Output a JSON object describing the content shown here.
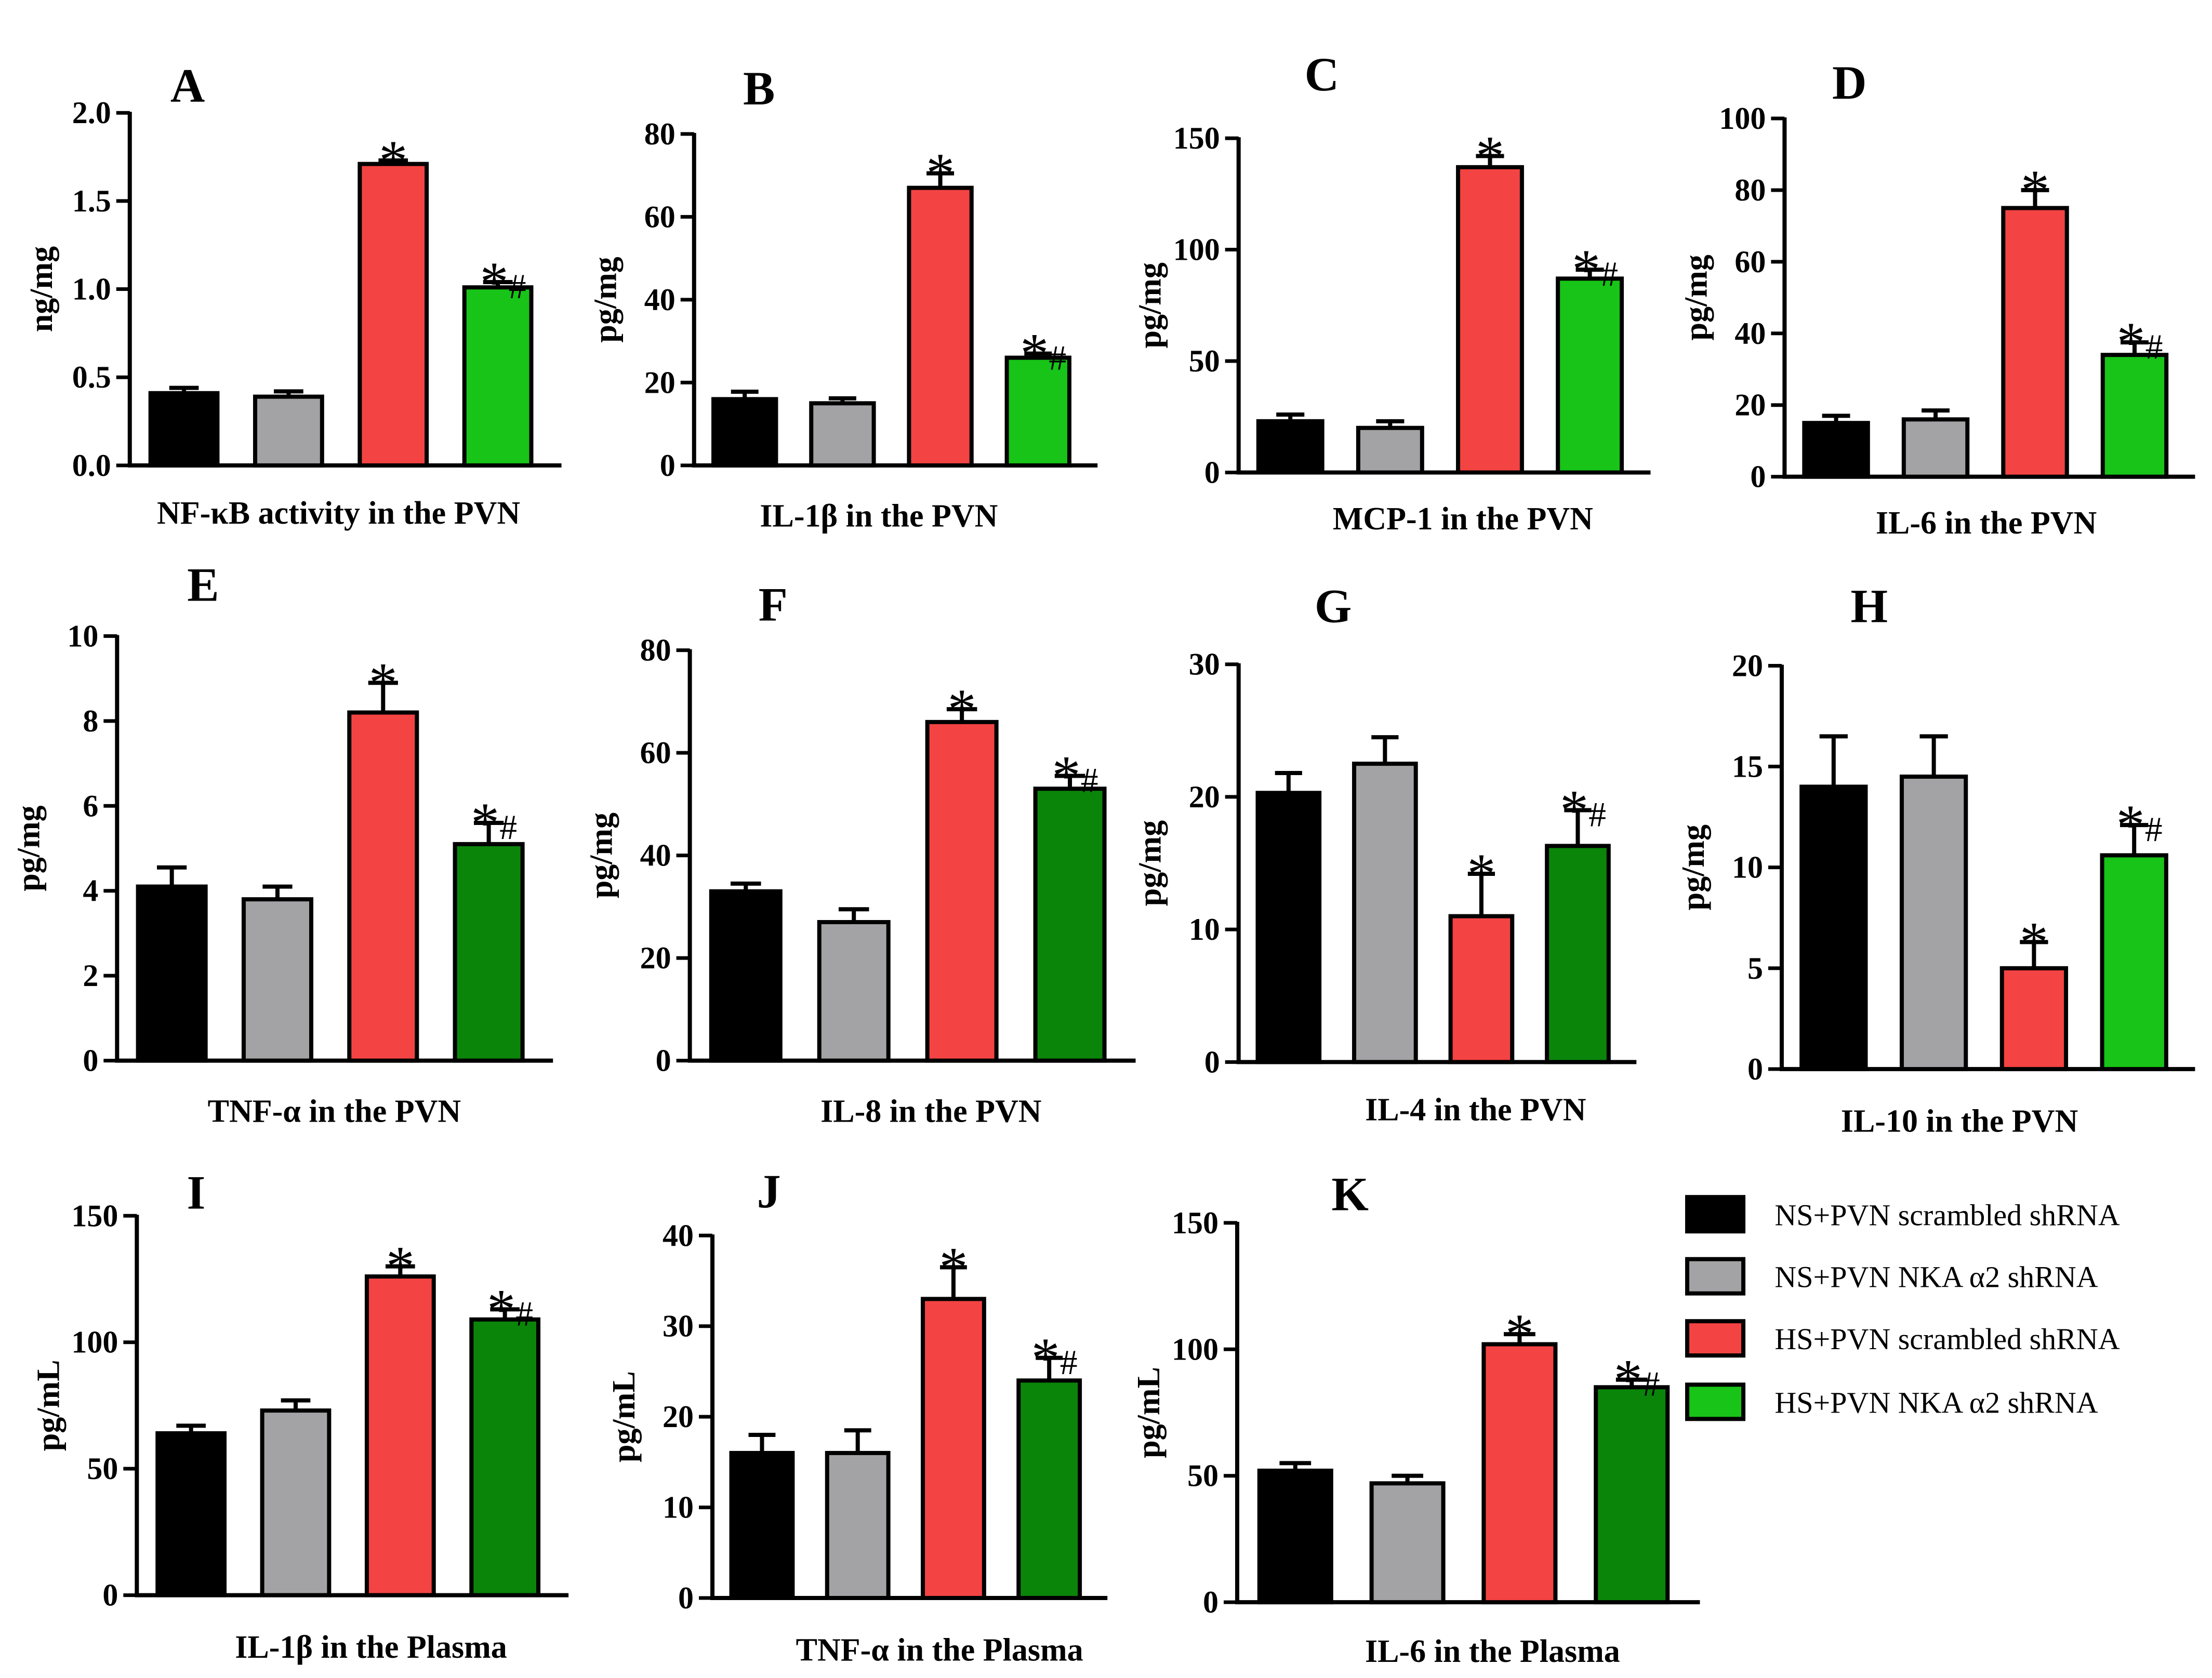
{
  "colors": {
    "NS_scrambled": "#000000",
    "NS_nka": "#a3a3a6",
    "HS_scrambled": "#f44343",
    "HS_nka_light": "#17c417",
    "HS_nka_dark": "#0a850a"
  },
  "legend": [
    {
      "label": "NS+PVN scrambled shRNA",
      "color": "#000000"
    },
    {
      "label": "NS+PVN NKA α2 shRNA",
      "color": "#a3a3a6"
    },
    {
      "label": "HS+PVN scrambled shRNA",
      "color": "#f44343"
    },
    {
      "label": "HS+PVN NKA α2 shRNA",
      "color": "#17c417"
    }
  ],
  "chart_data": [
    {
      "type": "bar",
      "panel": "A",
      "xlabel": "NF-κB activity in the PVN",
      "ylabel": "ng/mg",
      "ylim": [
        0,
        2.0
      ],
      "yticks": [
        "0.0",
        "0.5",
        "1.0",
        "1.5",
        "2.0"
      ],
      "tick_values": [
        0,
        0.5,
        1.0,
        1.5,
        2.0
      ],
      "values": [
        0.41,
        0.39,
        1.71,
        1.01
      ],
      "errors": [
        0.03,
        0.03,
        0.02,
        0.03
      ],
      "annotations": [
        "",
        "",
        "*",
        "*#"
      ],
      "green": "light"
    },
    {
      "type": "bar",
      "panel": "B",
      "xlabel": "IL-1β in the PVN",
      "ylabel": "pg/mg",
      "ylim": [
        0,
        80
      ],
      "yticks": [
        "0",
        "20",
        "40",
        "60",
        "80"
      ],
      "tick_values": [
        0,
        20,
        40,
        60,
        80
      ],
      "values": [
        16,
        15,
        67,
        26
      ],
      "errors": [
        1.8,
        1.2,
        3.5,
        1.0
      ],
      "annotations": [
        "",
        "",
        "*",
        "*#"
      ],
      "green": "light"
    },
    {
      "type": "bar",
      "panel": "C",
      "xlabel": "MCP-1 in the PVN",
      "ylabel": "pg/mg",
      "ylim": [
        0,
        150
      ],
      "yticks": [
        "0",
        "50",
        "100",
        "150"
      ],
      "tick_values": [
        0,
        50,
        100,
        150
      ],
      "values": [
        23,
        20,
        137,
        87
      ],
      "errors": [
        3,
        3,
        5,
        4
      ],
      "annotations": [
        "",
        "",
        "*",
        "*#"
      ],
      "green": "light"
    },
    {
      "type": "bar",
      "panel": "D",
      "xlabel": "IL-6 in the PVN",
      "ylabel": "pg/mg",
      "ylim": [
        0,
        100
      ],
      "yticks": [
        "0",
        "20",
        "40",
        "60",
        "80",
        "100"
      ],
      "tick_values": [
        0,
        20,
        40,
        60,
        80,
        100
      ],
      "values": [
        15,
        16,
        75,
        34
      ],
      "errors": [
        2,
        2.5,
        5,
        3.5
      ],
      "annotations": [
        "",
        "",
        "*",
        "*#"
      ],
      "green": "light"
    },
    {
      "type": "bar",
      "panel": "E",
      "xlabel": "TNF-α in the PVN",
      "ylabel": "pg/mg",
      "ylim": [
        0,
        10
      ],
      "yticks": [
        "0",
        "2",
        "4",
        "6",
        "8",
        "10"
      ],
      "tick_values": [
        0,
        2,
        4,
        6,
        8,
        10
      ],
      "values": [
        4.1,
        3.8,
        8.2,
        5.1
      ],
      "errors": [
        0.45,
        0.3,
        0.7,
        0.5
      ],
      "annotations": [
        "",
        "",
        "*",
        "*#"
      ],
      "green": "dark"
    },
    {
      "type": "bar",
      "panel": "F",
      "xlabel": "IL-8 in the PVN",
      "ylabel": "pg/mg",
      "ylim": [
        0,
        80
      ],
      "yticks": [
        "0",
        "20",
        "40",
        "60",
        "80"
      ],
      "tick_values": [
        0,
        20,
        40,
        60,
        80
      ],
      "values": [
        33,
        27,
        66,
        53
      ],
      "errors": [
        1.5,
        2.5,
        2.5,
        2.5
      ],
      "annotations": [
        "",
        "",
        "*",
        "*#"
      ],
      "green": "dark"
    },
    {
      "type": "bar",
      "panel": "G",
      "xlabel": "IL-4 in the PVN",
      "ylabel": "pg/mg",
      "ylim": [
        0,
        30
      ],
      "yticks": [
        "0",
        "10",
        "20",
        "30"
      ],
      "tick_values": [
        0,
        10,
        20,
        30
      ],
      "values": [
        20.3,
        22.5,
        11,
        16.3
      ],
      "errors": [
        1.5,
        2.0,
        3.2,
        2.7
      ],
      "annotations": [
        "",
        "",
        "*",
        "*#"
      ],
      "green": "dark"
    },
    {
      "type": "bar",
      "panel": "H",
      "xlabel": "IL-10 in the PVN",
      "ylabel": "pg/mg",
      "ylim": [
        0,
        20
      ],
      "yticks": [
        "0",
        "5",
        "10",
        "15",
        "20"
      ],
      "tick_values": [
        0,
        5,
        10,
        15,
        20
      ],
      "values": [
        14,
        14.5,
        5,
        10.6
      ],
      "errors": [
        2.5,
        2.0,
        1.3,
        1.5
      ],
      "annotations": [
        "",
        "",
        "*",
        "*#"
      ],
      "green": "light"
    },
    {
      "type": "bar",
      "panel": "I",
      "xlabel": "IL-1β  in the Plasma",
      "ylabel": "pg/mL",
      "ylim": [
        0,
        150
      ],
      "yticks": [
        "0",
        "50",
        "100",
        "150"
      ],
      "tick_values": [
        0,
        50,
        100,
        150
      ],
      "values": [
        64,
        73,
        126,
        109
      ],
      "errors": [
        3,
        4,
        4,
        4
      ],
      "annotations": [
        "",
        "",
        "*",
        "*#"
      ],
      "green": "dark"
    },
    {
      "type": "bar",
      "panel": "J",
      "xlabel": "TNF-α  in the Plasma",
      "ylabel": "pg/mL",
      "ylim": [
        0,
        40
      ],
      "yticks": [
        "0",
        "10",
        "20",
        "30",
        "40"
      ],
      "tick_values": [
        0,
        10,
        20,
        30,
        40
      ],
      "values": [
        16,
        16,
        33,
        24
      ],
      "errors": [
        2,
        2.5,
        3.5,
        2.5
      ],
      "annotations": [
        "",
        "",
        "*",
        "*#"
      ],
      "green": "dark"
    },
    {
      "type": "bar",
      "panel": "K",
      "xlabel": "IL-6  in the Plasma",
      "ylabel": "pg/mL",
      "ylim": [
        0,
        150
      ],
      "yticks": [
        "0",
        "50",
        "100",
        "150"
      ],
      "tick_values": [
        0,
        50,
        100,
        150
      ],
      "values": [
        52,
        47,
        102,
        85
      ],
      "errors": [
        3,
        3,
        4,
        3
      ],
      "annotations": [
        "",
        "",
        "*",
        "*#"
      ],
      "green": "dark"
    }
  ]
}
